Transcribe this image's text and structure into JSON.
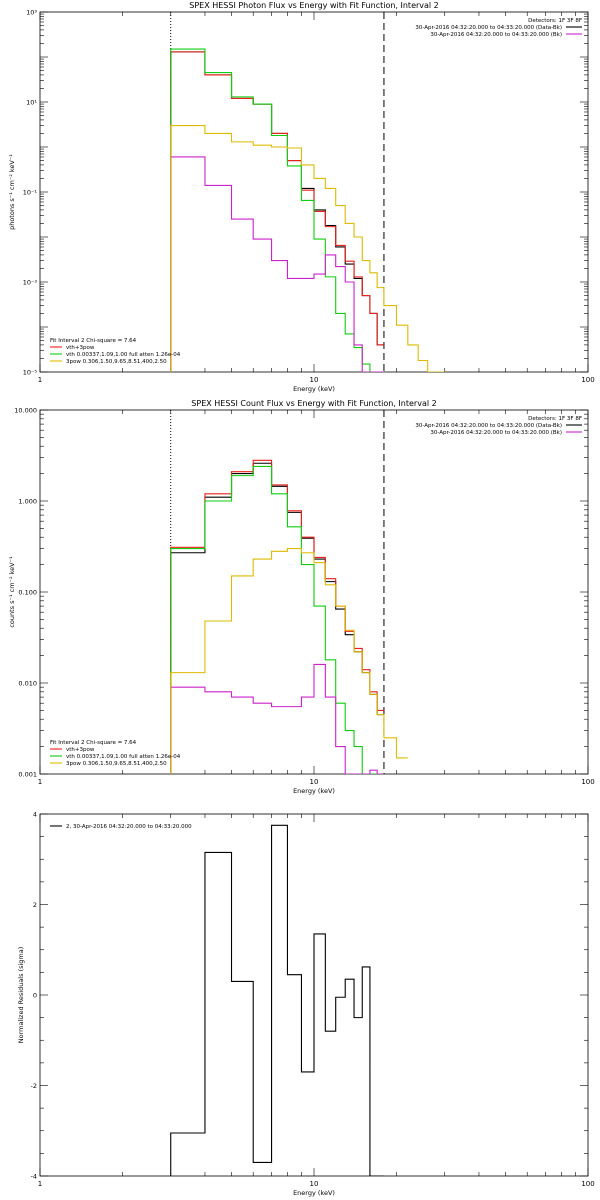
{
  "colors": {
    "data": "#000000",
    "total": "#e8211b",
    "bk": "#cc22cc",
    "vth": "#11cc11",
    "3pow": "#ddbb00",
    "lower_limit_line": "#000000",
    "upper_limit_line": "#000000"
  },
  "chart_data": [
    {
      "type": "line",
      "title": "SPEX HESSI Photon Flux vs Energy with Fit Function, Interval 2",
      "xlabel": "Energy (keV)",
      "ylabel": "photons s⁻¹ cm⁻² keV⁻¹",
      "xscale": "log",
      "yscale": "log",
      "xlim": [
        1,
        100
      ],
      "ylim": [
        1e-05,
        1000
      ],
      "x_tick_labels": [
        "1",
        "10",
        "100"
      ],
      "y_tick_labels": [
        "10⁻⁵",
        "10⁻³",
        "10⁻¹",
        "10¹",
        "10³"
      ],
      "y_tick_values": [
        1e-05,
        0.001,
        0.1,
        10,
        1000
      ],
      "legend_top_right": {
        "header": "Detectors: 1F 3F 8F",
        "entries": [
          {
            "text": "30-Apr-2016 04:32:20.000 to 04:33:20.000 (Data-Bk)",
            "color_key": "data"
          },
          {
            "text": "30-Apr-2016 04:32:20.000 to 04:33:20.000 (Bk)",
            "color_key": "bk"
          }
        ]
      },
      "legend_bottom_left": {
        "header": "Fit Interval 2   Chi-square = 7.64",
        "entries": [
          {
            "text": "vth+3pow",
            "color_key": "total"
          },
          {
            "text": "vth 0.00337,1.09,1.00   full atten 1.26e-04",
            "color_key": "vth"
          },
          {
            "text": "3pow 0.306,1.50,9.65,8.51,400,2.50",
            "color_key": "3pow"
          }
        ]
      },
      "vlines": [
        {
          "x": 3.0,
          "style": "dotted",
          "color_key": "lower_limit_line"
        },
        {
          "x": 18.0,
          "style": "dashed",
          "color_key": "upper_limit_line"
        }
      ],
      "edges": [
        3.0,
        3.5,
        4.0,
        4.5,
        5.0,
        5.5,
        6.0,
        6.5,
        7.0,
        7.5,
        8.0,
        8.5,
        9.0,
        10.0,
        11.0,
        12.0,
        13.0,
        14.0,
        15.0,
        16.0,
        17.0,
        18.0,
        20.0,
        22.0,
        24.0,
        26.0,
        28.0,
        30.0
      ],
      "series": [
        {
          "color_key": "data",
          "values": [
            130,
            130,
            40,
            40,
            12,
            12,
            9,
            9,
            2.0,
            2.0,
            0.5,
            0.5,
            0.12,
            0.04,
            0.018,
            0.006,
            0.0025,
            0.0012,
            0.0005,
            0.0002,
            4e-05
          ]
        },
        {
          "color_key": "total",
          "values": [
            130,
            130,
            40,
            40,
            12,
            12,
            9,
            9,
            2.0,
            2.0,
            0.5,
            0.5,
            0.11,
            0.037,
            0.017,
            0.0065,
            0.0029,
            0.0013,
            0.0005,
            0.0002,
            4e-05
          ]
        },
        {
          "color_key": "vth",
          "values": [
            150,
            150,
            45,
            45,
            13,
            13,
            9,
            9,
            1.8,
            1.8,
            0.38,
            0.38,
            0.065,
            0.009,
            0.0013,
            0.0002,
            7e-05,
            3.5e-05,
            1.5e-05,
            1e-05,
            5e-06
          ]
        },
        {
          "color_key": "bk",
          "values": [
            0.6,
            0.6,
            0.14,
            0.14,
            0.025,
            0.025,
            0.009,
            0.009,
            0.003,
            0.003,
            0.0012,
            0.0012,
            0.0012,
            0.0015,
            0.004,
            0.0022,
            0.001,
            4e-05,
            1e-05,
            5e-06,
            5e-06
          ]
        },
        {
          "color_key": "3pow",
          "values": [
            3.0,
            3.0,
            2.0,
            2.0,
            1.3,
            1.3,
            1.1,
            1.1,
            1.0,
            1.0,
            0.95,
            0.95,
            0.4,
            0.2,
            0.12,
            0.05,
            0.02,
            0.01,
            0.003,
            0.0016,
            0.00075,
            0.0003,
            0.00011,
            4e-05,
            1.8e-05,
            7e-06,
            4e-06
          ]
        }
      ]
    },
    {
      "type": "line",
      "title": "SPEX HESSI Count Flux vs Energy with Fit Function, Interval 2",
      "xlabel": "Energy (keV)",
      "ylabel": "counts s⁻¹ cm⁻² keV⁻¹",
      "xscale": "log",
      "yscale": "log",
      "xlim": [
        1,
        100
      ],
      "ylim": [
        0.001,
        10
      ],
      "x_tick_labels": [
        "1",
        "10",
        "100"
      ],
      "y_tick_labels": [
        "0.001",
        "0.010",
        "0.100",
        "1.000",
        "10.000"
      ],
      "y_tick_values": [
        0.001,
        0.01,
        0.1,
        1,
        10
      ],
      "legend_top_right": {
        "header": "Detectors: 1F 3F 8F",
        "entries": [
          {
            "text": "30-Apr-2016 04:32:20.000 to 04:33:20.000 (Data-Bk)",
            "color_key": "data"
          },
          {
            "text": "30-Apr-2016 04:32:20.000 to 04:33:20.000 (Bk)",
            "color_key": "bk"
          }
        ]
      },
      "legend_bottom_left": {
        "header": "Fit Interval 2   Chi-square = 7.64",
        "entries": [
          {
            "text": "vth+3pow",
            "color_key": "total"
          },
          {
            "text": "vth 0.00337,1.09,1.00   full atten 1.26e-04",
            "color_key": "vth"
          },
          {
            "text": "3pow 0.306,1.50,9.65,8.51,400,2.50",
            "color_key": "3pow"
          }
        ]
      },
      "vlines": [
        {
          "x": 3.0,
          "style": "dotted",
          "color_key": "lower_limit_line"
        },
        {
          "x": 18.0,
          "style": "dashed",
          "color_key": "upper_limit_line"
        }
      ],
      "edges": [
        3.0,
        3.5,
        4.0,
        4.5,
        5.0,
        5.5,
        6.0,
        6.5,
        7.0,
        7.5,
        8.0,
        8.5,
        9.0,
        10.0,
        11.0,
        12.0,
        13.0,
        14.0,
        15.0,
        16.0,
        17.0,
        18.0,
        20.0,
        22.0
      ],
      "series": [
        {
          "color_key": "data",
          "values": [
            0.27,
            0.27,
            1.1,
            1.1,
            2.0,
            2.0,
            2.6,
            2.6,
            1.45,
            1.45,
            0.75,
            0.75,
            0.39,
            0.23,
            0.13,
            0.065,
            0.034,
            0.022,
            0.013,
            0.0075,
            0.0045
          ]
        },
        {
          "color_key": "total",
          "values": [
            0.31,
            0.31,
            1.2,
            1.2,
            2.1,
            2.1,
            2.8,
            2.8,
            1.5,
            1.5,
            0.78,
            0.78,
            0.4,
            0.24,
            0.14,
            0.07,
            0.037,
            0.024,
            0.014,
            0.008,
            0.005
          ]
        },
        {
          "color_key": "vth",
          "values": [
            0.3,
            0.3,
            1.0,
            1.0,
            1.9,
            1.9,
            2.4,
            2.4,
            1.2,
            1.2,
            0.52,
            0.52,
            0.2,
            0.07,
            0.018,
            0.006,
            0.003,
            0.002,
            0.001,
            0.001,
            0.001
          ]
        },
        {
          "color_key": "bk",
          "values": [
            0.009,
            0.009,
            0.008,
            0.008,
            0.007,
            0.007,
            0.006,
            0.006,
            0.0055,
            0.0055,
            0.0055,
            0.0055,
            0.007,
            0.016,
            0.007,
            0.002,
            0.001,
            0.001,
            0.001,
            0.0011,
            0.001
          ]
        },
        {
          "color_key": "3pow",
          "values": [
            0.013,
            0.013,
            0.048,
            0.048,
            0.15,
            0.15,
            0.23,
            0.23,
            0.28,
            0.28,
            0.3,
            0.3,
            0.27,
            0.21,
            0.12,
            0.07,
            0.038,
            0.022,
            0.013,
            0.0075,
            0.0045,
            0.0025,
            0.0015
          ]
        }
      ]
    },
    {
      "type": "line",
      "title": "",
      "xlabel": "Energy (keV)",
      "ylabel": "Normalized Residuals (sigma)",
      "xscale": "log",
      "yscale": "linear",
      "xlim": [
        1,
        100
      ],
      "ylim": [
        -4,
        4
      ],
      "x_tick_labels": [
        "1",
        "10",
        "100"
      ],
      "y_tick_labels": [
        "-4",
        "-2",
        "0",
        "2",
        "4"
      ],
      "y_tick_values": [
        -4,
        -2,
        0,
        2,
        4
      ],
      "legend_top_left": {
        "entries": [
          {
            "text": "2, 30-Apr-2016 04:32:20.000 to 04:33:20.000",
            "color_key": "data"
          }
        ]
      },
      "edges": [
        3.0,
        4.0,
        5.0,
        6.0,
        7.0,
        8.0,
        9.0,
        10.0,
        11.0,
        12.0,
        13.0,
        14.0,
        15.0,
        16.0,
        17.0,
        18.0
      ],
      "series": [
        {
          "color_key": "data",
          "values": [
            -3.05,
            3.15,
            0.3,
            -3.7,
            3.75,
            0.45,
            -1.7,
            1.35,
            -0.8,
            -0.05,
            0.35,
            -0.5,
            0.62,
            -4.0,
            -4.0
          ]
        }
      ]
    }
  ]
}
